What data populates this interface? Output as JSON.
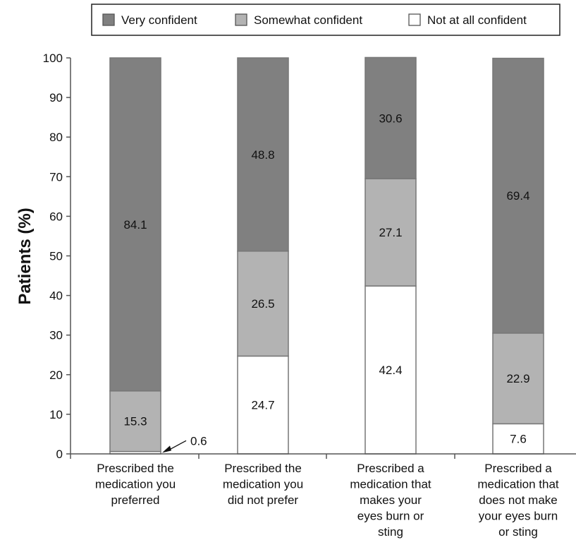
{
  "chart_data": {
    "type": "bar",
    "stacked": true,
    "title": "",
    "xlabel": "",
    "ylabel": "Patients (%)",
    "ylim": [
      0,
      100
    ],
    "yticks": [
      "0",
      "10",
      "20",
      "30",
      "40",
      "50",
      "60",
      "70",
      "80",
      "90",
      "100"
    ],
    "categories": [
      [
        "Prescribed the",
        "medication you",
        "preferred"
      ],
      [
        "Prescribed the",
        "medication you",
        "did not prefer"
      ],
      [
        "Prescribed a",
        "medication that",
        "makes your",
        "eyes burn or",
        "sting"
      ],
      [
        "Prescribed a",
        "medication that",
        "does not make",
        "your eyes burn",
        "or sting"
      ]
    ],
    "series": [
      {
        "name": "Not at all confident",
        "color": "#ffffff",
        "values": [
          0.6,
          24.7,
          42.4,
          7.6
        ],
        "labels": [
          "0.6",
          "24.7",
          "42.4",
          "7.6"
        ]
      },
      {
        "name": "Somewhat confident",
        "color": "#b3b3b3",
        "values": [
          15.3,
          26.5,
          27.1,
          22.9
        ],
        "labels": [
          "15.3",
          "26.5",
          "27.1",
          "22.9"
        ]
      },
      {
        "name": "Very confident",
        "color": "#808080",
        "values": [
          84.1,
          48.8,
          30.6,
          69.4
        ],
        "labels": [
          "84.1",
          "48.8",
          "30.6",
          "69.4"
        ]
      }
    ],
    "legend": {
      "position": "top",
      "order": [
        "Very confident",
        "Somewhat confident",
        "Not at all confident"
      ]
    },
    "annotation": {
      "text": "0.6",
      "category_index": 0,
      "series": "Not at all confident"
    },
    "grid": false
  }
}
